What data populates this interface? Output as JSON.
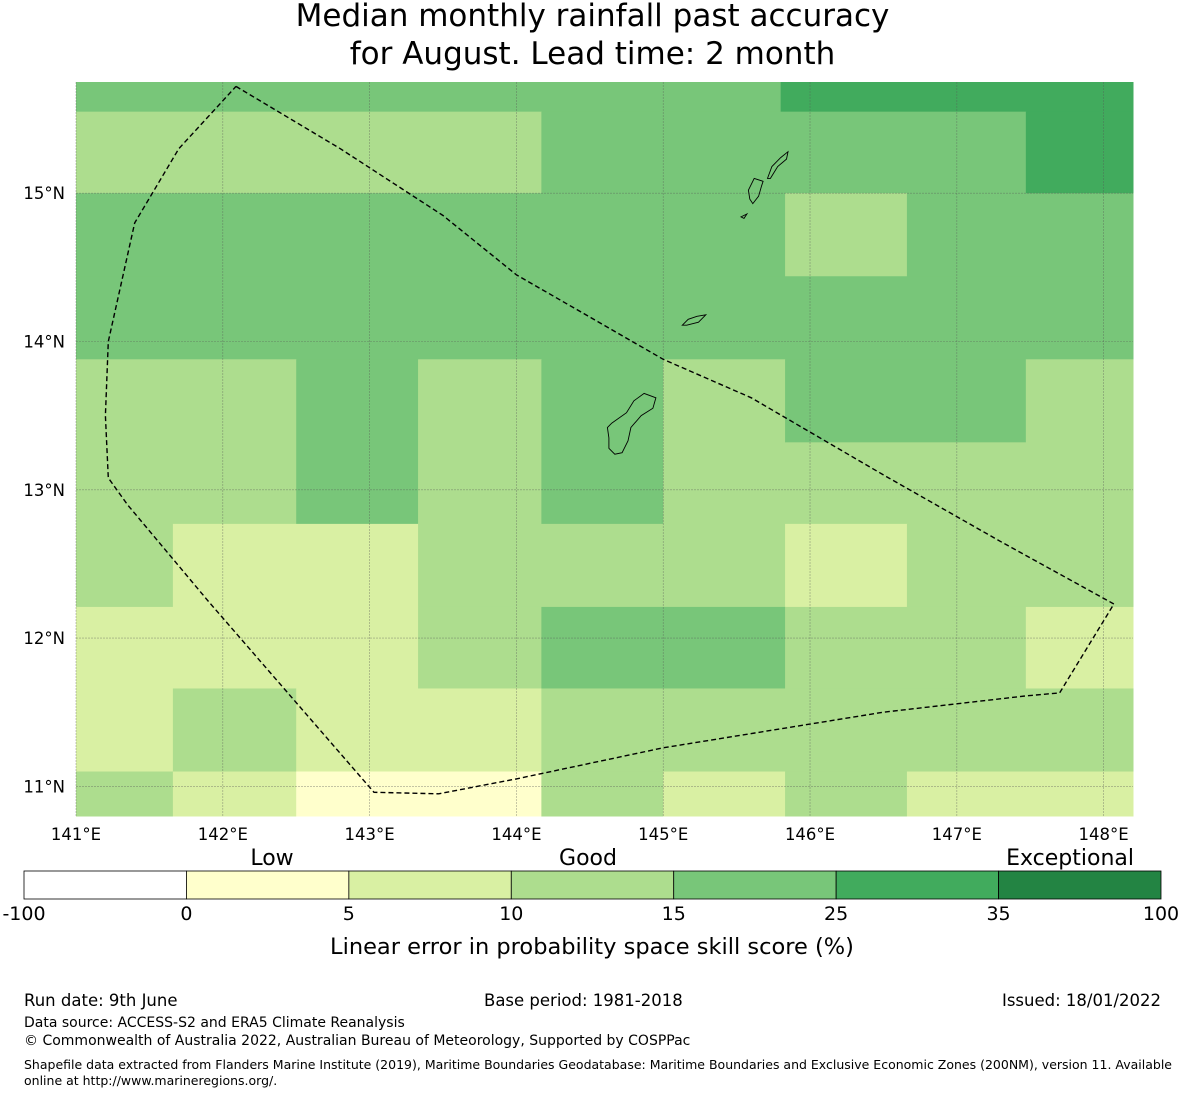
{
  "title": {
    "line1": "Median monthly rainfall past accuracy",
    "line2": "for August. Lead time: 2 month"
  },
  "map": {
    "lon_range": [
      141.0,
      148.2
    ],
    "lat_range": [
      10.8,
      15.75
    ],
    "lon_ticks": [
      "141°E",
      "142°E",
      "143°E",
      "144°E",
      "145°E",
      "146°E",
      "147°E",
      "148°E"
    ],
    "lat_ticks": [
      "11°N",
      "12°N",
      "13°N",
      "14°N",
      "15°N"
    ],
    "cells": [
      {
        "lon": [
          141.0,
          145.8
        ],
        "lat": [
          15.55,
          15.75
        ],
        "level": 4
      },
      {
        "lon": [
          145.8,
          148.2
        ],
        "lat": [
          15.55,
          15.75
        ],
        "level": 5
      },
      {
        "lon": [
          141.0,
          144.17
        ],
        "lat": [
          15.0,
          15.55
        ],
        "level": 3
      },
      {
        "lon": [
          144.17,
          147.47
        ],
        "lat": [
          15.0,
          15.55
        ],
        "level": 4
      },
      {
        "lon": [
          147.47,
          148.2
        ],
        "lat": [
          15.0,
          15.55
        ],
        "level": 5
      },
      {
        "lon": [
          141.0,
          145.83
        ],
        "lat": [
          14.44,
          15.0
        ],
        "level": 4
      },
      {
        "lon": [
          145.83,
          146.66
        ],
        "lat": [
          14.44,
          15.0
        ],
        "level": 3
      },
      {
        "lon": [
          146.66,
          148.2
        ],
        "lat": [
          14.44,
          15.0
        ],
        "level": 4
      },
      {
        "lon": [
          141.0,
          148.2
        ],
        "lat": [
          13.88,
          14.44
        ],
        "level": 4
      },
      {
        "lon": [
          141.0,
          142.5
        ],
        "lat": [
          12.77,
          13.88
        ],
        "level": 3
      },
      {
        "lon": [
          142.5,
          143.33
        ],
        "lat": [
          12.77,
          13.88
        ],
        "level": 4
      },
      {
        "lon": [
          143.33,
          144.17
        ],
        "lat": [
          12.77,
          13.88
        ],
        "level": 3
      },
      {
        "lon": [
          144.17,
          145.0
        ],
        "lat": [
          12.77,
          13.88
        ],
        "level": 4
      },
      {
        "lon": [
          145.0,
          145.83
        ],
        "lat": [
          12.77,
          13.88
        ],
        "level": 3
      },
      {
        "lon": [
          145.83,
          147.47
        ],
        "lat": [
          13.32,
          13.88
        ],
        "level": 4
      },
      {
        "lon": [
          147.47,
          148.2
        ],
        "lat": [
          13.32,
          13.88
        ],
        "level": 3
      },
      {
        "lon": [
          145.83,
          148.2
        ],
        "lat": [
          12.77,
          13.32
        ],
        "level": 3
      },
      {
        "lon": [
          141.0,
          141.66
        ],
        "lat": [
          12.21,
          12.77
        ],
        "level": 3
      },
      {
        "lon": [
          141.66,
          143.33
        ],
        "lat": [
          12.21,
          12.77
        ],
        "level": 2
      },
      {
        "lon": [
          143.33,
          145.83
        ],
        "lat": [
          12.21,
          12.77
        ],
        "level": 3
      },
      {
        "lon": [
          145.83,
          146.66
        ],
        "lat": [
          12.21,
          12.77
        ],
        "level": 2
      },
      {
        "lon": [
          146.66,
          148.2
        ],
        "lat": [
          12.21,
          12.77
        ],
        "level": 3
      },
      {
        "lon": [
          141.0,
          143.33
        ],
        "lat": [
          11.66,
          12.21
        ],
        "level": 2
      },
      {
        "lon": [
          143.33,
          144.17
        ],
        "lat": [
          11.66,
          12.21
        ],
        "level": 3
      },
      {
        "lon": [
          144.17,
          145.83
        ],
        "lat": [
          11.66,
          12.21
        ],
        "level": 4
      },
      {
        "lon": [
          145.83,
          147.47
        ],
        "lat": [
          11.66,
          12.21
        ],
        "level": 3
      },
      {
        "lon": [
          147.47,
          148.2
        ],
        "lat": [
          11.66,
          12.21
        ],
        "level": 2
      },
      {
        "lon": [
          141.0,
          141.66
        ],
        "lat": [
          11.1,
          11.66
        ],
        "level": 2
      },
      {
        "lon": [
          141.66,
          142.5
        ],
        "lat": [
          11.1,
          11.66
        ],
        "level": 3
      },
      {
        "lon": [
          142.5,
          144.17
        ],
        "lat": [
          11.1,
          11.66
        ],
        "level": 2
      },
      {
        "lon": [
          144.17,
          148.2
        ],
        "lat": [
          11.1,
          11.66
        ],
        "level": 3
      },
      {
        "lon": [
          141.0,
          141.66
        ],
        "lat": [
          10.8,
          11.1
        ],
        "level": 3
      },
      {
        "lon": [
          141.66,
          142.5
        ],
        "lat": [
          10.8,
          11.1
        ],
        "level": 2
      },
      {
        "lon": [
          142.5,
          144.17
        ],
        "lat": [
          10.8,
          11.1
        ],
        "level": 1
      },
      {
        "lon": [
          144.17,
          145.0
        ],
        "lat": [
          10.8,
          11.1
        ],
        "level": 3
      },
      {
        "lon": [
          145.0,
          145.83
        ],
        "lat": [
          10.8,
          11.1
        ],
        "level": 2
      },
      {
        "lon": [
          145.83,
          146.66
        ],
        "lat": [
          10.8,
          11.1
        ],
        "level": 3
      },
      {
        "lon": [
          146.66,
          148.2
        ],
        "lat": [
          10.8,
          11.1
        ],
        "level": 2
      }
    ],
    "eez_boundary": [
      [
        142.09,
        15.72
      ],
      [
        142.8,
        15.3
      ],
      [
        143.5,
        14.85
      ],
      [
        144.0,
        14.45
      ],
      [
        145.0,
        13.88
      ],
      [
        145.6,
        13.62
      ],
      [
        146.5,
        13.1
      ],
      [
        147.3,
        12.65
      ],
      [
        148.07,
        12.23
      ],
      [
        147.7,
        11.63
      ],
      [
        147.47,
        11.61
      ],
      [
        146.5,
        11.5
      ],
      [
        145.0,
        11.26
      ],
      [
        144.0,
        11.05
      ],
      [
        143.47,
        10.95
      ],
      [
        143.03,
        10.96
      ],
      [
        141.9,
        12.25
      ],
      [
        141.35,
        12.9
      ],
      [
        141.22,
        13.08
      ],
      [
        141.2,
        13.5
      ],
      [
        141.22,
        14.0
      ],
      [
        141.4,
        14.8
      ],
      [
        141.7,
        15.3
      ],
      [
        142.09,
        15.72
      ]
    ],
    "islands": [
      [
        [
          144.65,
          13.45
        ],
        [
          144.75,
          13.52
        ],
        [
          144.8,
          13.6
        ],
        [
          144.87,
          13.65
        ],
        [
          144.95,
          13.62
        ],
        [
          144.93,
          13.55
        ],
        [
          144.85,
          13.5
        ],
        [
          144.78,
          13.42
        ],
        [
          144.76,
          13.33
        ],
        [
          144.72,
          13.25
        ],
        [
          144.67,
          13.24
        ],
        [
          144.63,
          13.28
        ],
        [
          144.63,
          13.35
        ],
        [
          144.62,
          13.42
        ]
      ],
      [
        [
          145.13,
          14.11
        ],
        [
          145.17,
          14.15
        ],
        [
          145.23,
          14.17
        ],
        [
          145.29,
          14.18
        ],
        [
          145.24,
          14.13
        ],
        [
          145.16,
          14.11
        ]
      ],
      [
        [
          145.61,
          14.93
        ],
        [
          145.65,
          14.98
        ],
        [
          145.67,
          15.05
        ],
        [
          145.68,
          15.08
        ],
        [
          145.62,
          15.1
        ],
        [
          145.58,
          15.02
        ],
        [
          145.59,
          14.96
        ]
      ],
      [
        [
          145.71,
          15.1
        ],
        [
          145.74,
          15.18
        ],
        [
          145.8,
          15.24
        ],
        [
          145.85,
          15.28
        ],
        [
          145.84,
          15.23
        ],
        [
          145.78,
          15.18
        ],
        [
          145.73,
          15.1
        ]
      ],
      [
        [
          145.53,
          14.84
        ],
        [
          145.57,
          14.86
        ],
        [
          145.55,
          14.83
        ]
      ]
    ]
  },
  "colorbar": {
    "header_left": "Low",
    "header_middle": "Good",
    "header_right": "Exceptional",
    "boundaries": [
      "-100",
      "0",
      "5",
      "10",
      "15",
      "25",
      "35",
      "100"
    ],
    "colors": [
      "#ffffff",
      "#ffffcc",
      "#d9f0a3",
      "#addd8e",
      "#78c679",
      "#41ab5d",
      "#238443"
    ],
    "label": "Linear error in probability space skill score (%)"
  },
  "footer": {
    "run_date": "Run date: 9th June",
    "base_period": "Base period: 1981-2018",
    "issued": "Issued: 18/01/2022",
    "data_source": "Data source: ACCESS-S2 and ERA5 Climate Reanalysis",
    "copyright": "© Commonwealth of Australia 2022, Australian Bureau of Meteorology, Supported by COSPPac",
    "shapefile_note": "Shapefile data extracted from Flanders Marine Institute (2019), Maritime Boundaries Geodatabase: Maritime Boundaries and Exclusive Economic Zones (200NM), version 11. Available online at http://www.marineregions.org/."
  }
}
